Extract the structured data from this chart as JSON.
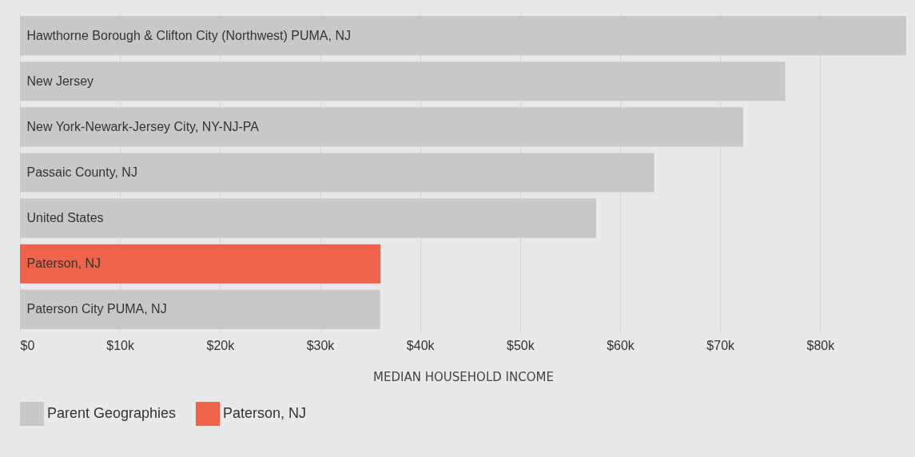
{
  "chart_data": {
    "type": "bar",
    "orientation": "horizontal",
    "xlabel": "MEDIAN HOUSEHOLD INCOME",
    "categories": [
      "Hawthorne Borough & Clifton City (Northwest) PUMA, NJ",
      "New Jersey",
      "New York-Newark-Jersey City, NY-NJ-PA",
      "Passaic County, NJ",
      "United States",
      "Paterson, NJ",
      "Paterson City PUMA, NJ"
    ],
    "series": [
      {
        "name": "Parent Geographies",
        "color": "#c8c8ca",
        "values": [
          88600,
          76500,
          72300,
          63400,
          57600,
          null,
          36000
        ]
      },
      {
        "name": "Paterson, NJ",
        "color": "#ee634c",
        "values": [
          null,
          null,
          null,
          null,
          null,
          36050,
          null
        ]
      }
    ],
    "xlim": [
      0,
      88600
    ],
    "xticks": [
      {
        "value": 0,
        "label": "$0"
      },
      {
        "value": 10000,
        "label": "$10k"
      },
      {
        "value": 20000,
        "label": "$20k"
      },
      {
        "value": 30000,
        "label": "$30k"
      },
      {
        "value": 40000,
        "label": "$40k"
      },
      {
        "value": 50000,
        "label": "$50k"
      },
      {
        "value": 60000,
        "label": "$60k"
      },
      {
        "value": 70000,
        "label": "$70k"
      },
      {
        "value": 80000,
        "label": "$80k"
      }
    ],
    "grid": "x",
    "legend": "bottom"
  }
}
